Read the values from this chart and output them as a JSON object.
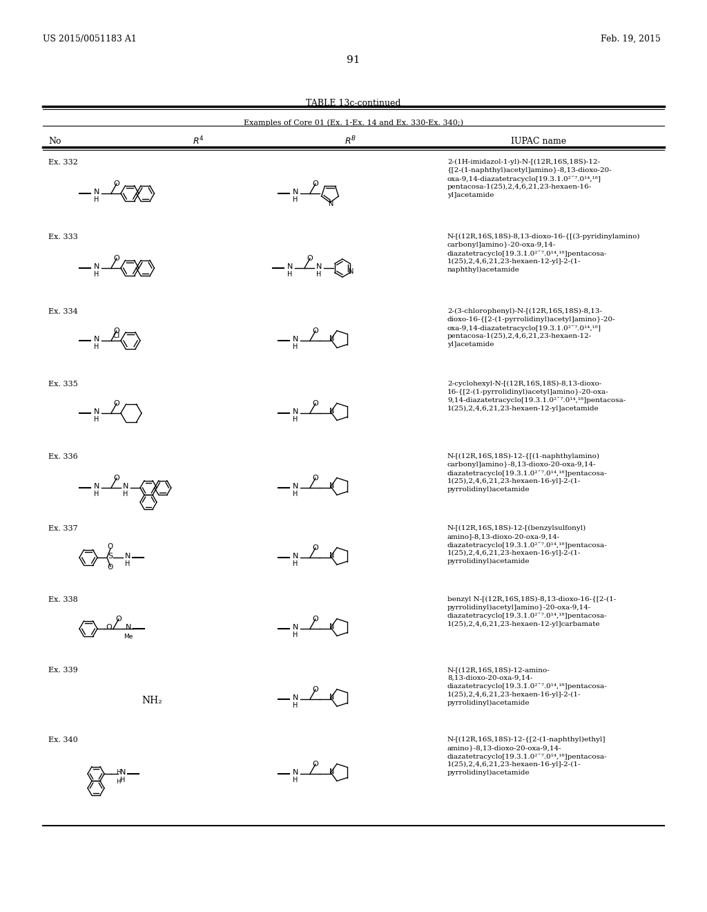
{
  "page_left": "US 2015/0051183 A1",
  "page_right": "Feb. 19, 2015",
  "page_number": "91",
  "table_title": "TABLE 13c-continued",
  "subtitle": "Examples of Core 01 (Ex. 1-Ex. 14 and Ex. 330-Ex. 340;)",
  "bg_color": "#ffffff",
  "examples": [
    {
      "no": "Ex. 332",
      "iupac": [
        "2-(1H-imidazol-1-yl)-N-[(12R,16S,18S)-12-",
        "{[2-(1-naphthyl)acetyl]amino}-8,13-dioxo-20-",
        "oxa-9,14-diazatetracyclo[19.3.1.0²ˇ⁷.0¹⁴,¹⁸]",
        "pentacosa-1(25),2,4,6,21,23-hexaen-16-",
        "yl]acetamide"
      ]
    },
    {
      "no": "Ex. 333",
      "iupac": [
        "N-[(12R,16S,18S)-8,13-dioxo-16-{[(3-pyridinylamino)",
        "carbonyl]amino}-20-oxa-9,14-",
        "diazatetracyclo[19.3.1.0²ˇ⁷.0¹⁴,¹⁸]pentacosa-",
        "1(25),2,4,6,21,23-hexaen-12-yl]-2-(1-",
        "naphthyl)acetamide"
      ]
    },
    {
      "no": "Ex. 334",
      "iupac": [
        "2-(3-chlorophenyl)-N-[(12R,16S,18S)-8,13-",
        "dioxo-16-{[2-(1-pyrrolidinyl)acetyl]amino}-20-",
        "oxa-9,14-diazatetracyclo[19.3.1.0²ˇ⁷.0¹⁴,¹⁸]",
        "pentacosa-1(25),2,4,6,21,23-hexaen-12-",
        "yl]acetamide"
      ]
    },
    {
      "no": "Ex. 335",
      "iupac": [
        "2-cyclohexyl-N-[(12R,16S,18S)-8,13-dioxo-",
        "16-{[2-(1-pyrrolidinyl)acetyl]amino}-20-oxa-",
        "9,14-diazatetracyclo[19.3.1.0²ˇ⁷.0¹⁴,¹⁸]pentacosa-",
        "1(25),2,4,6,21,23-hexaen-12-yl]acetamide"
      ]
    },
    {
      "no": "Ex. 336",
      "iupac": [
        "N-[(12R,16S,18S)-12-{[(1-naphthylamino)",
        "carbonyl]amino}-8,13-dioxo-20-oxa-9,14-",
        "diazatetracyclo[19.3.1.0²ˇ⁷.0¹⁴,¹⁸]pentacosa-",
        "1(25),2,4,6,21,23-hexaen-16-yl]-2-(1-",
        "pyrrolidinyl)acetamide"
      ]
    },
    {
      "no": "Ex. 337",
      "iupac": [
        "N-[(12R,16S,18S)-12-[(benzylsulfonyl)",
        "amino]-8,13-dioxo-20-oxa-9,14-",
        "diazatetracyclo[19.3.1.0²ˇ⁷.0¹⁴,¹⁸]pentacosa-",
        "1(25),2,4,6,21,23-hexaen-16-yl]-2-(1-",
        "pyrrolidinyl)acetamide"
      ]
    },
    {
      "no": "Ex. 338",
      "iupac": [
        "benzyl N-[(12R,16S,18S)-8,13-dioxo-16-{[2-(1-",
        "pyrrolidinyl)acetyl]amino}-20-oxa-9,14-",
        "diazatetracyclo[19.3.1.0²ˇ⁷.0¹⁴,¹⁸]pentacosa-",
        "1(25),2,4,6,21,23-hexaen-12-yl]carbamate"
      ]
    },
    {
      "no": "Ex. 339",
      "iupac": [
        "N-[(12R,16S,18S)-12-amino-",
        "8,13-dioxo-20-oxa-9,14-",
        "diazatetracyclo[19.3.1.0²ˇ⁷.0¹⁴,¹⁸]pentacosa-",
        "1(25),2,4,6,21,23-hexaen-16-yl]-2-(1-",
        "pyrrolidinyl)acetamide"
      ]
    },
    {
      "no": "Ex. 340",
      "iupac": [
        "N-[(12R,16S,18S)-12-{[2-(1-naphthyl)ethyl]",
        "amino}-8,13-dioxo-20-oxa-9,14-",
        "diazatetracyclo[19.3.1.0²ˇ⁷.0¹⁴,¹⁸]pentacosa-",
        "1(25),2,4,6,21,23-hexaen-16-yl]-2-(1-",
        "pyrrolidinyl)acetamide"
      ]
    }
  ]
}
